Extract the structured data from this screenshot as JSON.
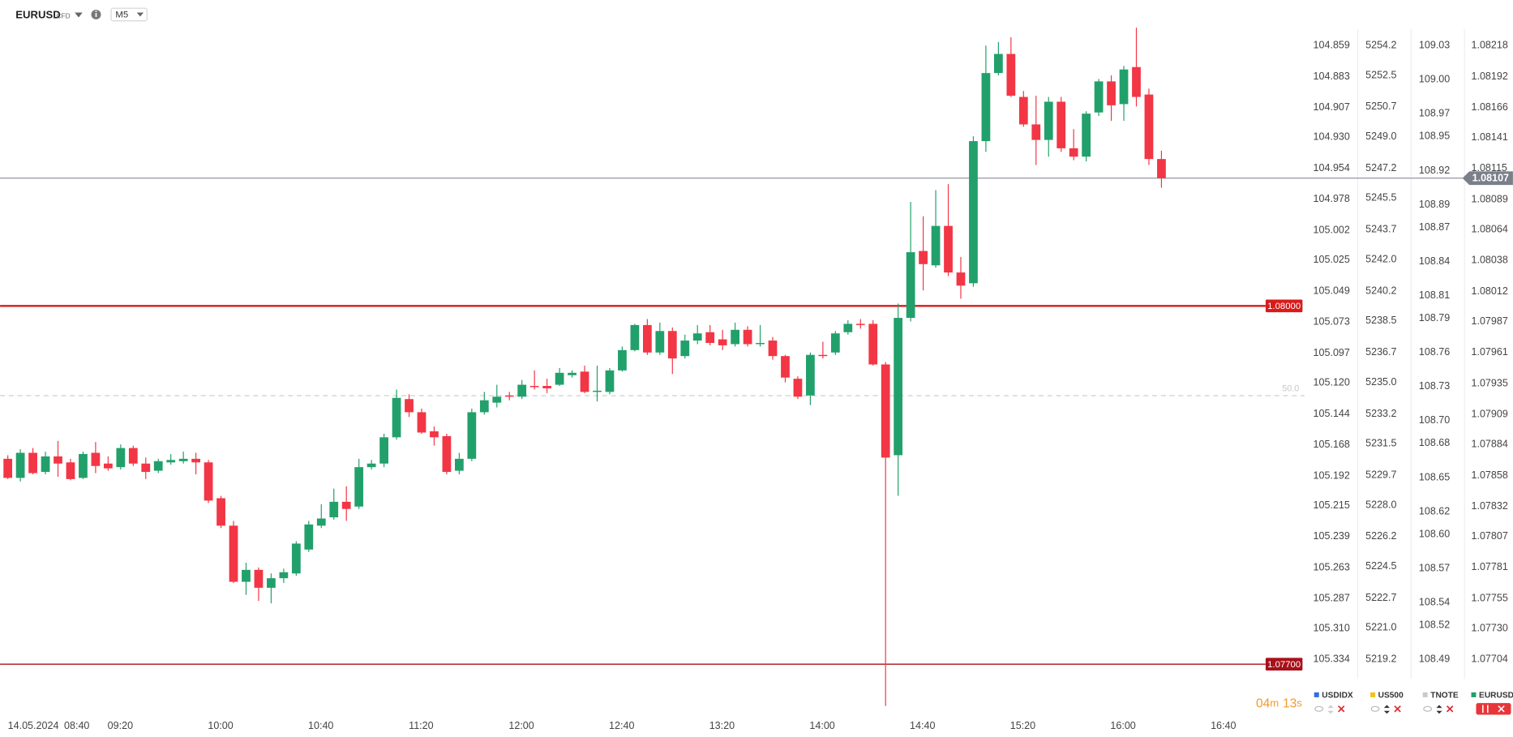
{
  "toolbar": {
    "symbol": "EURUSD",
    "instrument_type": "CFD",
    "timeframe": "M5"
  },
  "countdown": {
    "minutes": "04",
    "minutes_unit": "m",
    "seconds": "13",
    "seconds_unit": "s"
  },
  "chart_data": {
    "type": "candlestick",
    "x_labels": [
      "14.05.2024",
      "08:40",
      "09:20",
      "10:00",
      "10:40",
      "11:20",
      "12:00",
      "12:40",
      "13:20",
      "14:00",
      "14:40",
      "15:20",
      "16:00",
      "16:40"
    ],
    "ylim": [
      1.07704,
      1.08218
    ],
    "yticks": [
      1.08218,
      1.08192,
      1.08166,
      1.08141,
      1.08115,
      1.08089,
      1.08064,
      1.08038,
      1.08012,
      1.07987,
      1.07961,
      1.07935,
      1.07909,
      1.07884,
      1.07858,
      1.07832,
      1.07807,
      1.07781,
      1.07755,
      {
        "value": 1.0773,
        "label": "1.07730"
      },
      1.07704
    ],
    "series": [
      {
        "name": "EURUSD",
        "up_color": "#22a06b",
        "down_color": "#f23645",
        "open": [
          1.07872,
          1.07856,
          1.07877,
          1.07861,
          1.07874,
          1.07869,
          1.07856,
          1.07877,
          1.07868,
          1.07865,
          1.07881,
          1.07868,
          1.07862,
          1.07869,
          1.0787,
          1.07872,
          1.07869,
          1.07839,
          1.07816,
          1.07769,
          1.07779,
          1.07764,
          1.07772,
          1.07776,
          1.07796,
          1.07816,
          1.07823,
          1.07836,
          1.07832,
          1.07865,
          1.07868,
          1.0789,
          1.07922,
          1.07911,
          1.07895,
          1.07891,
          1.07862,
          1.07872,
          1.07911,
          1.07919,
          1.07925,
          1.07924,
          1.07933,
          1.07933,
          1.07934,
          1.07942,
          1.07945,
          1.07928,
          1.07928,
          1.07946,
          1.07963,
          1.07984,
          1.07961,
          1.07979,
          1.07958,
          1.07971,
          1.07978,
          1.07972,
          1.07968,
          1.0798,
          1.07968,
          1.07971,
          1.07958,
          1.07939,
          1.07925,
          1.07959,
          1.07961,
          1.07978,
          1.07985,
          1.07985,
          1.07951,
          1.07875,
          1.0799,
          1.08046,
          1.08034,
          1.08067,
          1.08028,
          1.08019,
          1.08138,
          1.08195,
          1.08211,
          1.08175,
          1.08152,
          1.08139,
          1.08171,
          1.08132,
          1.08125,
          1.08162,
          1.08188,
          1.08169,
          1.082,
          1.08177,
          1.08123
        ],
        "high": [
          1.07875,
          1.0788,
          1.07881,
          1.07878,
          1.07887,
          1.07872,
          1.07878,
          1.07886,
          1.07874,
          1.07884,
          1.07883,
          1.07873,
          1.07872,
          1.07876,
          1.07878,
          1.07877,
          1.07871,
          1.07841,
          1.0782,
          1.07785,
          1.07781,
          1.07776,
          1.0778,
          1.07803,
          1.0782,
          1.07834,
          1.07847,
          1.07849,
          1.07872,
          1.07871,
          1.07893,
          1.0793,
          1.07926,
          1.07914,
          1.07899,
          1.07893,
          1.07877,
          1.07914,
          1.07928,
          1.07934,
          1.07928,
          1.07938,
          1.07946,
          1.07939,
          1.07948,
          1.07946,
          1.0795,
          1.0795,
          1.07948,
          1.07966,
          1.07985,
          1.07989,
          1.07986,
          1.07982,
          1.07976,
          1.07984,
          1.07984,
          1.0798,
          1.07986,
          1.07983,
          1.07984,
          1.07974,
          1.07959,
          1.07941,
          1.07961,
          1.0797,
          1.07979,
          1.07988,
          1.07989,
          1.07988,
          1.07953,
          1.08002,
          1.08087,
          1.08075,
          1.08097,
          1.08102,
          1.08041,
          1.08142,
          1.08218,
          1.08221,
          1.08225,
          1.0818,
          1.08176,
          1.08175,
          1.08175,
          1.08148,
          1.08163,
          1.0819,
          1.08193,
          1.08201,
          1.08233,
          1.08182,
          1.0813
        ],
        "low": [
          1.07855,
          1.07853,
          1.07859,
          1.07859,
          1.07857,
          1.07854,
          1.07855,
          1.0786,
          1.07862,
          1.07863,
          1.07866,
          1.07855,
          1.0786,
          1.07867,
          1.07868,
          1.07859,
          1.07835,
          1.07814,
          1.07768,
          1.07758,
          1.07753,
          1.07751,
          1.07768,
          1.07774,
          1.07794,
          1.07814,
          1.07821,
          1.0782,
          1.0783,
          1.07863,
          1.07865,
          1.07888,
          1.07907,
          1.07893,
          1.07883,
          1.07859,
          1.07859,
          1.0787,
          1.07909,
          1.07915,
          1.07921,
          1.07922,
          1.0793,
          1.07927,
          1.07933,
          1.0794,
          1.07927,
          1.0792,
          1.07926,
          1.07945,
          1.07962,
          1.07959,
          1.07959,
          1.07943,
          1.07956,
          1.07968,
          1.07967,
          1.07963,
          1.07966,
          1.07966,
          1.07966,
          1.07955,
          1.07936,
          1.07922,
          1.07917,
          1.07956,
          1.07959,
          1.07976,
          1.07981,
          1.0795,
          1.07665,
          1.07841,
          1.07987,
          1.08013,
          1.08032,
          1.08025,
          1.08006,
          1.08016,
          1.08129,
          1.08193,
          1.08175,
          1.0815,
          1.08118,
          1.08125,
          1.08129,
          1.08122,
          1.08121,
          1.08159,
          1.08155,
          1.08155,
          1.08167,
          1.08118,
          1.08099
        ],
        "close": [
          1.07856,
          1.07877,
          1.0786,
          1.07874,
          1.07868,
          1.07855,
          1.07876,
          1.07866,
          1.07864,
          1.07881,
          1.07868,
          1.07861,
          1.0787,
          1.07871,
          1.07872,
          1.07869,
          1.07837,
          1.07816,
          1.07769,
          1.07779,
          1.07764,
          1.07772,
          1.07777,
          1.07801,
          1.07817,
          1.07822,
          1.07836,
          1.0783,
          1.07865,
          1.07868,
          1.0789,
          1.07923,
          1.07911,
          1.07894,
          1.0789,
          1.07861,
          1.07872,
          1.07911,
          1.07921,
          1.07924,
          1.07924,
          1.07934,
          1.07932,
          1.07931,
          1.07944,
          1.07944,
          1.07928,
          1.07929,
          1.07946,
          1.07963,
          1.07984,
          1.07961,
          1.07979,
          1.07956,
          1.07971,
          1.07977,
          1.07969,
          1.07967,
          1.0798,
          1.07968,
          1.07969,
          1.07958,
          1.0794,
          1.07924,
          1.07959,
          1.07958,
          1.07977,
          1.07985,
          1.07984,
          1.07951,
          1.07873,
          1.0799,
          1.08045,
          1.08035,
          1.08067,
          1.08028,
          1.08017,
          1.08138,
          1.08195,
          1.08211,
          1.08176,
          1.08152,
          1.08139,
          1.08171,
          1.08132,
          1.08125,
          1.08161,
          1.08188,
          1.08168,
          1.08198,
          1.08175,
          1.08123,
          1.08107
        ]
      }
    ],
    "comparison_axes": [
      {
        "name": "USDIDX",
        "color": "#2f6fe0",
        "lim": [
          105.334,
          104.859
        ],
        "ticks": [
          104.859,
          104.883,
          104.907,
          {
            "value": 104.93,
            "label": "104.930"
          },
          104.954,
          104.978,
          105.002,
          105.025,
          105.049,
          105.073,
          105.097,
          {
            "value": 105.12,
            "label": "105.120"
          },
          105.144,
          105.168,
          105.192,
          105.215,
          105.239,
          105.263,
          105.287,
          {
            "value": 105.31,
            "label": "105.310"
          },
          105.334
        ]
      },
      {
        "name": "US500",
        "color": "#f2c21b",
        "lim": [
          5219.2,
          5254.2
        ],
        "ticks": [
          5254.2,
          5252.5,
          5250.7,
          {
            "value": 5249,
            "label": "5249.0"
          },
          5247.2,
          5245.5,
          5243.7,
          {
            "value": 5242,
            "label": "5242.0"
          },
          5240.2,
          5238.5,
          5236.7,
          {
            "value": 5235,
            "label": "5235.0"
          },
          5233.2,
          5231.5,
          5229.7,
          {
            "value": 5228,
            "label": "5228.0"
          },
          5226.2,
          5224.5,
          5222.7,
          {
            "value": 5221,
            "label": "5221.0"
          },
          5219.2
        ]
      },
      {
        "name": "TNOTE",
        "color": "#c9c9c9",
        "lim": [
          108.49,
          109.03
        ],
        "ticks": [
          109.03,
          {
            "value": 109,
            "label": "109.00"
          },
          108.97,
          108.95,
          108.92,
          108.89,
          108.87,
          108.84,
          108.81,
          108.79,
          108.76,
          108.73,
          {
            "value": 108.7,
            "label": "108.70"
          },
          108.68,
          108.65,
          108.62,
          {
            "value": 108.6,
            "label": "108.60"
          },
          108.57,
          108.54,
          108.52,
          108.49
        ]
      }
    ],
    "price_lines": [
      {
        "value": 1.08,
        "label": "1.08000",
        "color": "#d81b1b"
      },
      {
        "value": 1.077,
        "label": "1.07700",
        "color": "#a8101a"
      }
    ],
    "last_price": {
      "value": 1.08107,
      "label": "1.08107",
      "color": "#7b7f8a"
    },
    "level_label": "50.0"
  }
}
